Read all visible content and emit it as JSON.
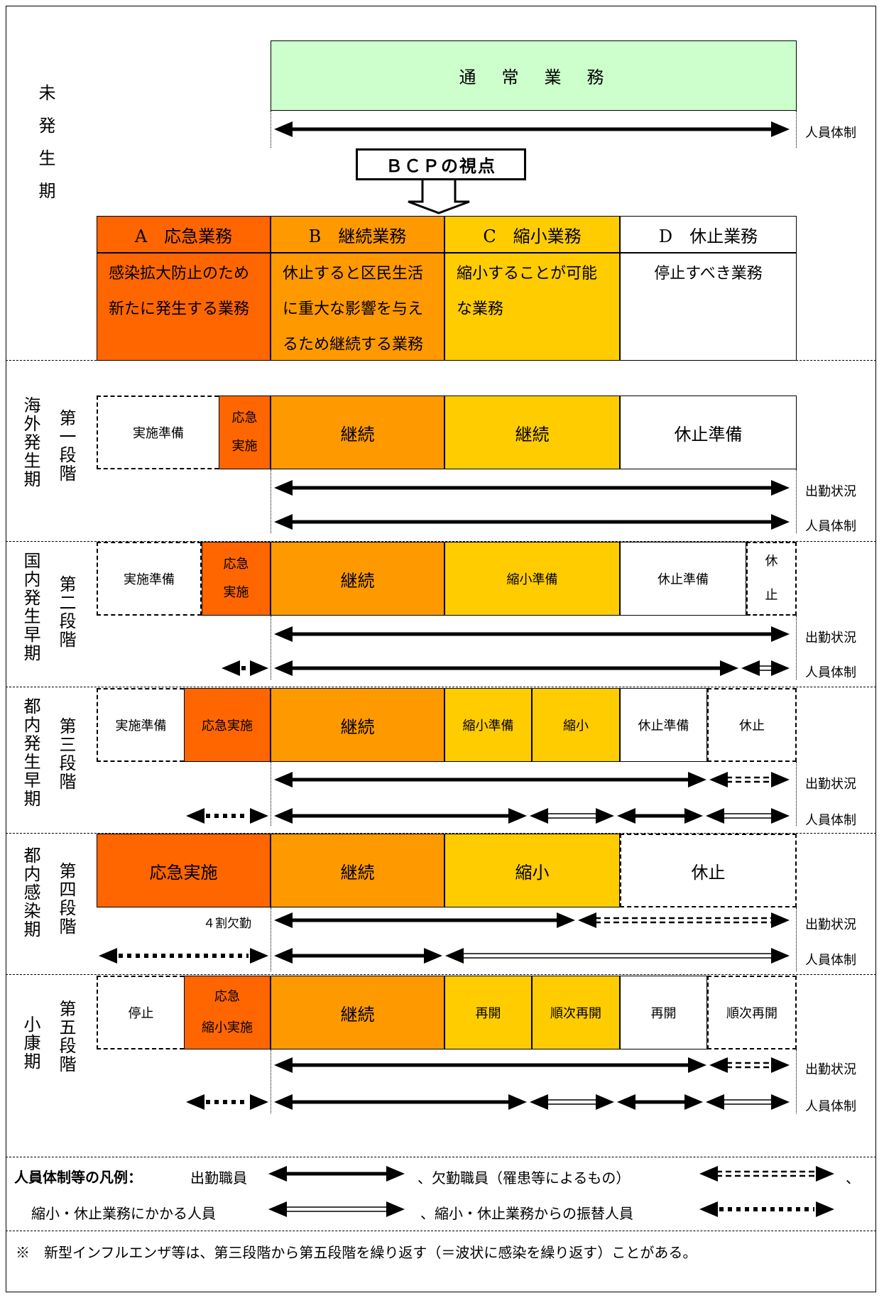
{
  "top_box": "通　常　業　務",
  "staffing": "人員体制",
  "attendance": "出勤状況",
  "bcp_label": "ＢＣＰの視点",
  "phase0_label": "未発生期",
  "categories": [
    {
      "head": "A　応急業務",
      "desc1": "感染拡大防止のため",
      "desc2": "新たに発生する業務",
      "desc3": ""
    },
    {
      "head": "B　継続業務",
      "desc1": "休止すると区民生活",
      "desc2": "に重大な影響を与え",
      "desc3": "るため継続する業務"
    },
    {
      "head": "C　縮小業務",
      "desc1": "縮小することが可能",
      "desc2": "な業務",
      "desc3": ""
    },
    {
      "head": "D　休止業務",
      "desc1": "停止すべき業務",
      "desc2": "",
      "desc3": ""
    }
  ],
  "stages": [
    {
      "period": "海外発生期",
      "stage": "第一段階",
      "cells": [
        "実施準備",
        "応急",
        "実施",
        "継続",
        "継続",
        "休止準備"
      ]
    },
    {
      "period": "国内発生早期",
      "stage": "第二段階",
      "cells": [
        "実施準備",
        "応急",
        "実施",
        "継続",
        "縮小準備",
        "休止準備",
        "休",
        "止"
      ]
    },
    {
      "period": "都内発生早期",
      "stage": "第三段階",
      "cells": [
        "実施準備",
        "応急実施",
        "継続",
        "縮小準備",
        "縮小",
        "休止準備",
        "休止"
      ]
    },
    {
      "period": "都内感染期",
      "stage": "第四段階",
      "cells": [
        "応急実施",
        "継続",
        "縮小",
        "休止"
      ],
      "note": "４割欠勤"
    },
    {
      "period": "小康期",
      "stage": "第五段階",
      "cells": [
        "停止",
        "応急",
        "縮小実施",
        "継続",
        "再開",
        "順次再開",
        "再開",
        "順次再開"
      ]
    }
  ],
  "legend": {
    "title": "人員体制等の凡例：",
    "item1": "出勤職員",
    "item2": "、欠勤職員（罹患等によるもの）",
    "item2_end": "、",
    "item3": "縮小・休止業務にかかる人員",
    "item4": "、縮小・休止業務からの振替人員"
  },
  "footnote": "※　新型インフルエンザ等は、第三段階から第五段階を繰り返す（＝波状に感染を繰り返す）ことがある。",
  "colors": {
    "red": "#FF6600",
    "orange": "#FF9900",
    "yellow": "#FFCC00",
    "green": "#CCFFCC"
  }
}
